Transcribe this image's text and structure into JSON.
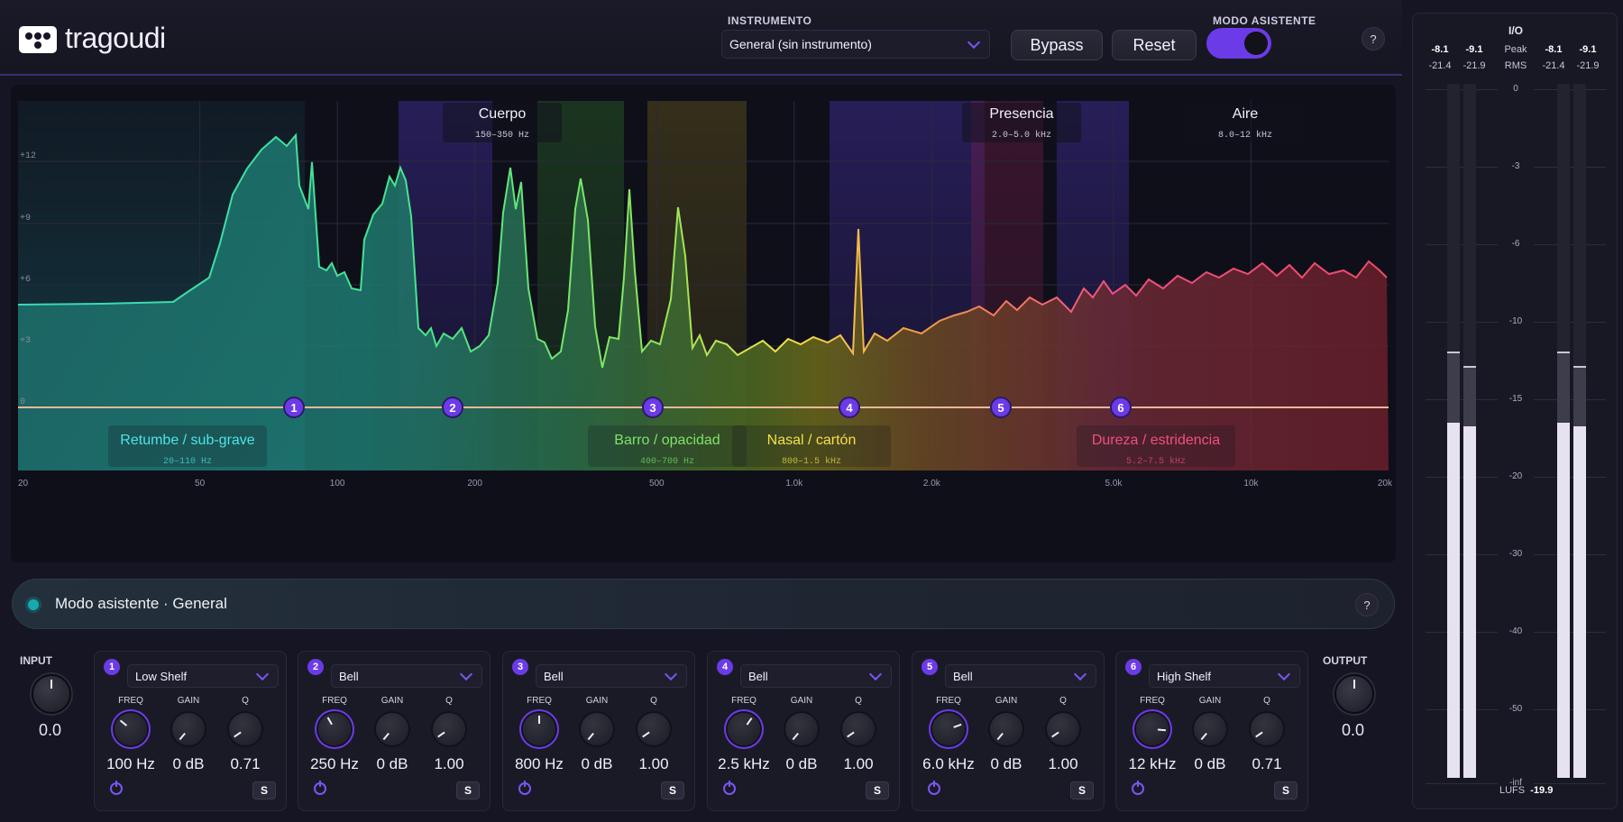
{
  "app": {
    "logo_text": "tragoudi"
  },
  "header": {
    "instrument_label": "INSTRUMENTO",
    "instrument_value": "General (sin instrumento)",
    "bypass_label": "Bypass",
    "reset_label": "Reset",
    "assistant_mode_label": "MODO ASISTENTE",
    "assistant_mode_on": true,
    "help_label": "?"
  },
  "analyzer": {
    "y_ticks": [
      "+12",
      "+9",
      "+6",
      "+3",
      "0"
    ],
    "x_ticks": [
      "20",
      "50",
      "100",
      "200",
      "500",
      "1.0k",
      "2.0k",
      "5.0k",
      "10k",
      "20k"
    ],
    "top_zones": [
      {
        "name": "Cuerpo",
        "range": "150–350 Hz"
      },
      {
        "name": "Presencia",
        "range": "2.0–5.0 kHz"
      },
      {
        "name": "Aire",
        "range": "8.0–12 kHz"
      }
    ],
    "bottom_zones": [
      {
        "name": "Retumbe / sub-grave",
        "range": "20–110 Hz",
        "color": "#4fe3e6"
      },
      {
        "name": "Barro / opacidad",
        "range": "400–700 Hz",
        "color": "#7ee36a"
      },
      {
        "name": "Nasal / cartón",
        "range": "800–1.5 kHz",
        "color": "#f2e14a"
      },
      {
        "name": "Dureza / estridencia",
        "range": "5.2–7.5 kHz",
        "color": "#f0507c"
      }
    ],
    "nodes": [
      "1",
      "2",
      "3",
      "4",
      "5",
      "6"
    ]
  },
  "assistant": {
    "title": "Modo asistente · General",
    "help": "?"
  },
  "input": {
    "label": "INPUT",
    "value": "0.0"
  },
  "output": {
    "label": "OUTPUT",
    "value": "0.0"
  },
  "band_labels": {
    "freq": "FREQ",
    "gain": "GAIN",
    "q": "Q",
    "solo": "S"
  },
  "bands": [
    {
      "num": "1",
      "type": "Low Shelf",
      "freq": "100 Hz",
      "gain": "0 dB",
      "q": "0.71"
    },
    {
      "num": "2",
      "type": "Bell",
      "freq": "250 Hz",
      "gain": "0 dB",
      "q": "1.00"
    },
    {
      "num": "3",
      "type": "Bell",
      "freq": "800 Hz",
      "gain": "0 dB",
      "q": "1.00"
    },
    {
      "num": "4",
      "type": "Bell",
      "freq": "2.5 kHz",
      "gain": "0 dB",
      "q": "1.00"
    },
    {
      "num": "5",
      "type": "Bell",
      "freq": "6.0 kHz",
      "gain": "0 dB",
      "q": "1.00"
    },
    {
      "num": "6",
      "type": "High Shelf",
      "freq": "12 kHz",
      "gain": "0 dB",
      "q": "0.71"
    }
  ],
  "meters": {
    "title": "I/O",
    "peak_label": "Peak",
    "rms_label": "RMS",
    "in_peak": [
      "-8.1",
      "-9.1"
    ],
    "in_rms": [
      "-21.4",
      "-21.9"
    ],
    "out_peak": [
      "-8.1",
      "-9.1"
    ],
    "out_rms": [
      "-21.4",
      "-21.9"
    ],
    "scale": [
      "0",
      "-3",
      "-6",
      "-10",
      "-15",
      "-20",
      "-30",
      "-40",
      "-50",
      "-inf"
    ],
    "lufs_label": "LUFS",
    "lufs_value": "-19.9"
  },
  "colors": {
    "accent": "#6c3be8",
    "teal": "#17a9ae"
  }
}
